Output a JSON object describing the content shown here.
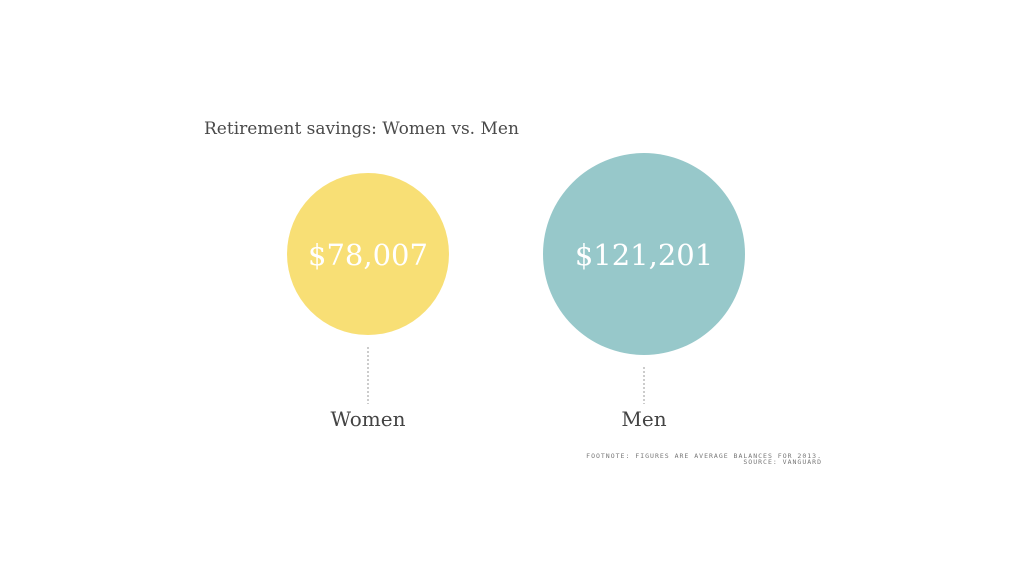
{
  "chart_data": {
    "type": "bubble",
    "title": "Retirement savings: Women vs. Men",
    "categories": [
      "Women",
      "Men"
    ],
    "values": [
      78007,
      121201
    ],
    "value_labels": [
      "$78,007",
      "$121,201"
    ],
    "colors": [
      "#f8df75",
      "#97c8ca"
    ],
    "footnote": "FOOTNOTE: FIGURES ARE AVERAGE BALANCES FOR 2013.",
    "source": "SOURCE: VANGUARD"
  }
}
